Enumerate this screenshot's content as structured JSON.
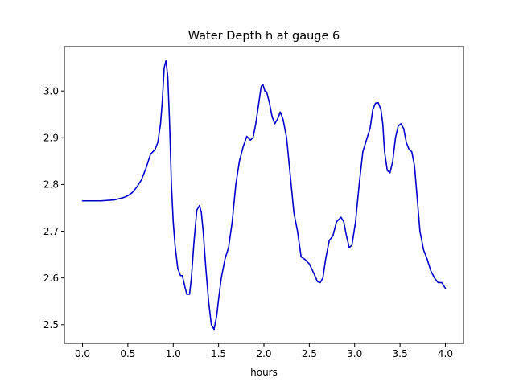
{
  "chart_data": {
    "type": "line",
    "title": "Water Depth h at gauge 6",
    "xlabel": "hours",
    "ylabel": "",
    "xlim": [
      -0.2,
      4.2
    ],
    "ylim": [
      2.46,
      3.095
    ],
    "xticks": [
      0.0,
      0.5,
      1.0,
      1.5,
      2.0,
      2.5,
      3.0,
      3.5,
      4.0
    ],
    "xtick_labels": [
      "0.0",
      "0.5",
      "1.0",
      "1.5",
      "2.0",
      "2.5",
      "3.0",
      "3.5",
      "4.0"
    ],
    "yticks": [
      2.5,
      2.6,
      2.7,
      2.8,
      2.9,
      3.0
    ],
    "ytick_labels": [
      "2.5",
      "2.6",
      "2.7",
      "2.8",
      "2.9",
      "3.0"
    ],
    "grid": false,
    "legend": "none",
    "series": [
      {
        "color": "#0000cc",
        "x": [
          0.0,
          0.2,
          0.35,
          0.45,
          0.5,
          0.55,
          0.6,
          0.65,
          0.7,
          0.75,
          0.8,
          0.83,
          0.86,
          0.88,
          0.9,
          0.92,
          0.94,
          0.96,
          0.98,
          1.0,
          1.02,
          1.05,
          1.08,
          1.1,
          1.13,
          1.15,
          1.18,
          1.2,
          1.23,
          1.26,
          1.29,
          1.31,
          1.33,
          1.36,
          1.39,
          1.42,
          1.45,
          1.48,
          1.5,
          1.53,
          1.57,
          1.61,
          1.65,
          1.69,
          1.73,
          1.77,
          1.81,
          1.85,
          1.88,
          1.91,
          1.94,
          1.97,
          1.99,
          2.01,
          2.03,
          2.06,
          2.09,
          2.12,
          2.15,
          2.18,
          2.21,
          2.25,
          2.29,
          2.33,
          2.37,
          2.41,
          2.45,
          2.5,
          2.55,
          2.59,
          2.62,
          2.65,
          2.68,
          2.72,
          2.76,
          2.8,
          2.85,
          2.88,
          2.91,
          2.94,
          2.97,
          3.01,
          3.05,
          3.09,
          3.13,
          3.17,
          3.2,
          3.23,
          3.26,
          3.29,
          3.31,
          3.33,
          3.36,
          3.39,
          3.42,
          3.45,
          3.48,
          3.51,
          3.54,
          3.57,
          3.6,
          3.63,
          3.66,
          3.69,
          3.72,
          3.76,
          3.8,
          3.84,
          3.88,
          3.92,
          3.96,
          4.0
        ],
        "y": [
          2.765,
          2.765,
          2.767,
          2.772,
          2.776,
          2.783,
          2.795,
          2.81,
          2.835,
          2.865,
          2.875,
          2.89,
          2.93,
          2.98,
          3.05,
          3.065,
          3.03,
          2.93,
          2.8,
          2.72,
          2.67,
          2.62,
          2.605,
          2.605,
          2.58,
          2.565,
          2.565,
          2.6,
          2.68,
          2.745,
          2.755,
          2.74,
          2.7,
          2.62,
          2.55,
          2.5,
          2.49,
          2.52,
          2.555,
          2.6,
          2.64,
          2.665,
          2.72,
          2.8,
          2.85,
          2.88,
          2.903,
          2.895,
          2.9,
          2.93,
          2.97,
          3.01,
          3.013,
          3.0,
          2.998,
          2.975,
          2.945,
          2.93,
          2.94,
          2.955,
          2.94,
          2.9,
          2.82,
          2.74,
          2.7,
          2.645,
          2.64,
          2.63,
          2.61,
          2.592,
          2.59,
          2.6,
          2.64,
          2.68,
          2.69,
          2.72,
          2.73,
          2.72,
          2.69,
          2.665,
          2.67,
          2.72,
          2.8,
          2.87,
          2.895,
          2.92,
          2.96,
          2.974,
          2.975,
          2.96,
          2.93,
          2.87,
          2.83,
          2.825,
          2.85,
          2.9,
          2.925,
          2.93,
          2.92,
          2.89,
          2.875,
          2.87,
          2.84,
          2.77,
          2.7,
          2.66,
          2.64,
          2.615,
          2.6,
          2.59,
          2.59,
          2.578
        ]
      }
    ]
  }
}
